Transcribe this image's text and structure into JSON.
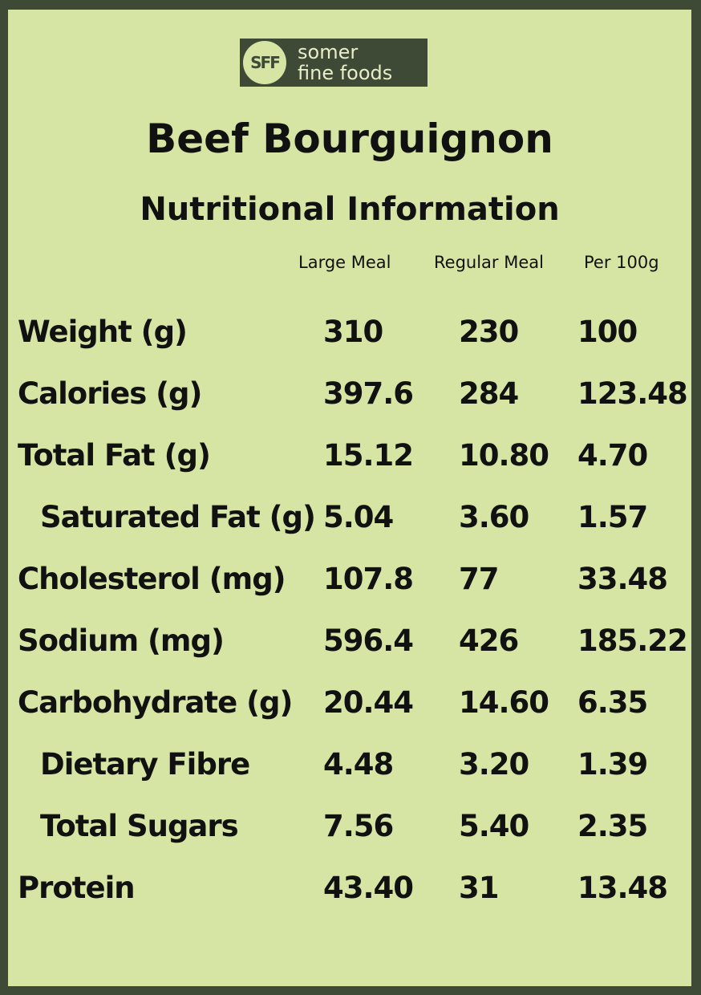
{
  "logo": {
    "mark": "SFF",
    "line1": "somer",
    "line2": "fine foods"
  },
  "title": "Beef Bourguignon",
  "subtitle": "Nutritional Information",
  "columns": [
    "Large Meal",
    "Regular Meal",
    "Per 100g"
  ],
  "rows": [
    {
      "label": "Weight (g)",
      "indent": false,
      "values": [
        "310",
        "230",
        "100"
      ]
    },
    {
      "label": "Calories (g)",
      "indent": false,
      "values": [
        "397.6",
        "284",
        "123.48"
      ]
    },
    {
      "label": "Total Fat (g)",
      "indent": false,
      "values": [
        "15.12",
        "10.80",
        "4.70"
      ]
    },
    {
      "label": "Saturated Fat (g)",
      "indent": true,
      "values": [
        "5.04",
        "3.60",
        "1.57"
      ]
    },
    {
      "label": "Cholesterol (mg)",
      "indent": false,
      "values": [
        "107.8",
        "77",
        "33.48"
      ]
    },
    {
      "label": "Sodium (mg)",
      "indent": false,
      "values": [
        "596.4",
        "426",
        "185.22"
      ]
    },
    {
      "label": "Carbohydrate (g)",
      "indent": false,
      "values": [
        "20.44",
        "14.60",
        "6.35"
      ]
    },
    {
      "label": "Dietary Fibre",
      "indent": true,
      "values": [
        "4.48",
        "3.20",
        "1.39"
      ]
    },
    {
      "label": "Total Sugars",
      "indent": true,
      "values": [
        "7.56",
        "5.40",
        "2.35"
      ]
    },
    {
      "label": "Protein",
      "indent": false,
      "values": [
        "43.40",
        "31",
        "13.48"
      ]
    }
  ],
  "colors": {
    "border": "#3e4a35",
    "background": "#d6e4a4",
    "text": "#111111"
  }
}
